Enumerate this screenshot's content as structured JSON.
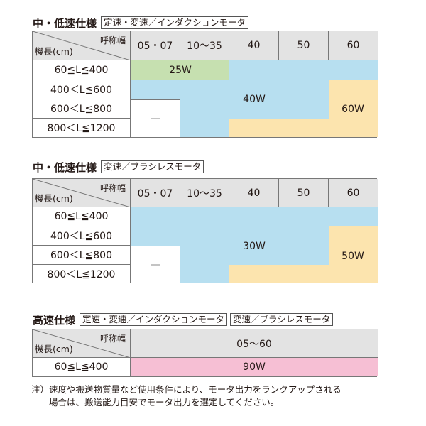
{
  "tables": [
    {
      "title": "中・低速仕様",
      "tags": [
        "定速・変速／インダクションモータ"
      ],
      "corner_top": "呼称幅",
      "corner_bottom": "機長(cm)",
      "columns": [
        "05・07",
        "10〜35",
        "40",
        "50",
        "60"
      ],
      "rows": [
        "60≦L≦400",
        "400＜L≦600",
        "600＜L≦800",
        "800＜L≦1200"
      ],
      "fills": [
        [
          "green",
          "green",
          "blue",
          "blue",
          "blue"
        ],
        [
          "blue",
          "blue",
          "blue",
          "blue",
          "orange"
        ],
        [
          "white",
          "blue",
          "blue",
          "blue",
          "orange"
        ],
        [
          "white",
          "blue",
          "orange",
          "orange",
          "orange"
        ]
      ],
      "values": {
        "green": "25W",
        "blue": "40W",
        "orange": "60W",
        "white": "—"
      }
    },
    {
      "title": "中・低速仕様",
      "tags": [
        "変速／ブラシレスモータ"
      ],
      "corner_top": "呼称幅",
      "corner_bottom": "機長(cm)",
      "columns": [
        "05・07",
        "10〜35",
        "40",
        "50",
        "60"
      ],
      "rows": [
        "60≦L≦400",
        "400＜L≦600",
        "600＜L≦800",
        "800＜L≦1200"
      ],
      "fills": [
        [
          "blue",
          "blue",
          "blue",
          "blue",
          "blue"
        ],
        [
          "blue",
          "blue",
          "blue",
          "blue",
          "orange"
        ],
        [
          "white",
          "blue",
          "blue",
          "blue",
          "orange"
        ],
        [
          "white",
          "blue",
          "orange",
          "orange",
          "orange"
        ]
      ],
      "values": {
        "blue": "30W",
        "orange": "50W",
        "white": "—"
      }
    },
    {
      "title": "高速仕様",
      "tags": [
        "定速・変速／インダクションモータ",
        "変速／ブラシレスモータ"
      ],
      "corner_top": "呼称幅",
      "corner_bottom": "機長(cm)",
      "columns": [
        "05〜60"
      ],
      "rows": [
        "60≦L≦400"
      ],
      "fills": [
        [
          "pink"
        ]
      ],
      "values": {
        "pink": "90W"
      }
    }
  ],
  "colors": {
    "green": "#c6e0b0",
    "blue": "#b7dff0",
    "orange": "#fce4ae",
    "pink": "#f6bfd4",
    "header": "#e3e3e3"
  },
  "note": {
    "line1": "注）速度や搬送物質量など使用条件により、モータ出力をランクアップされる",
    "line2": "　　場合は、搬送能力目安でモータ出力を選定してください。"
  }
}
